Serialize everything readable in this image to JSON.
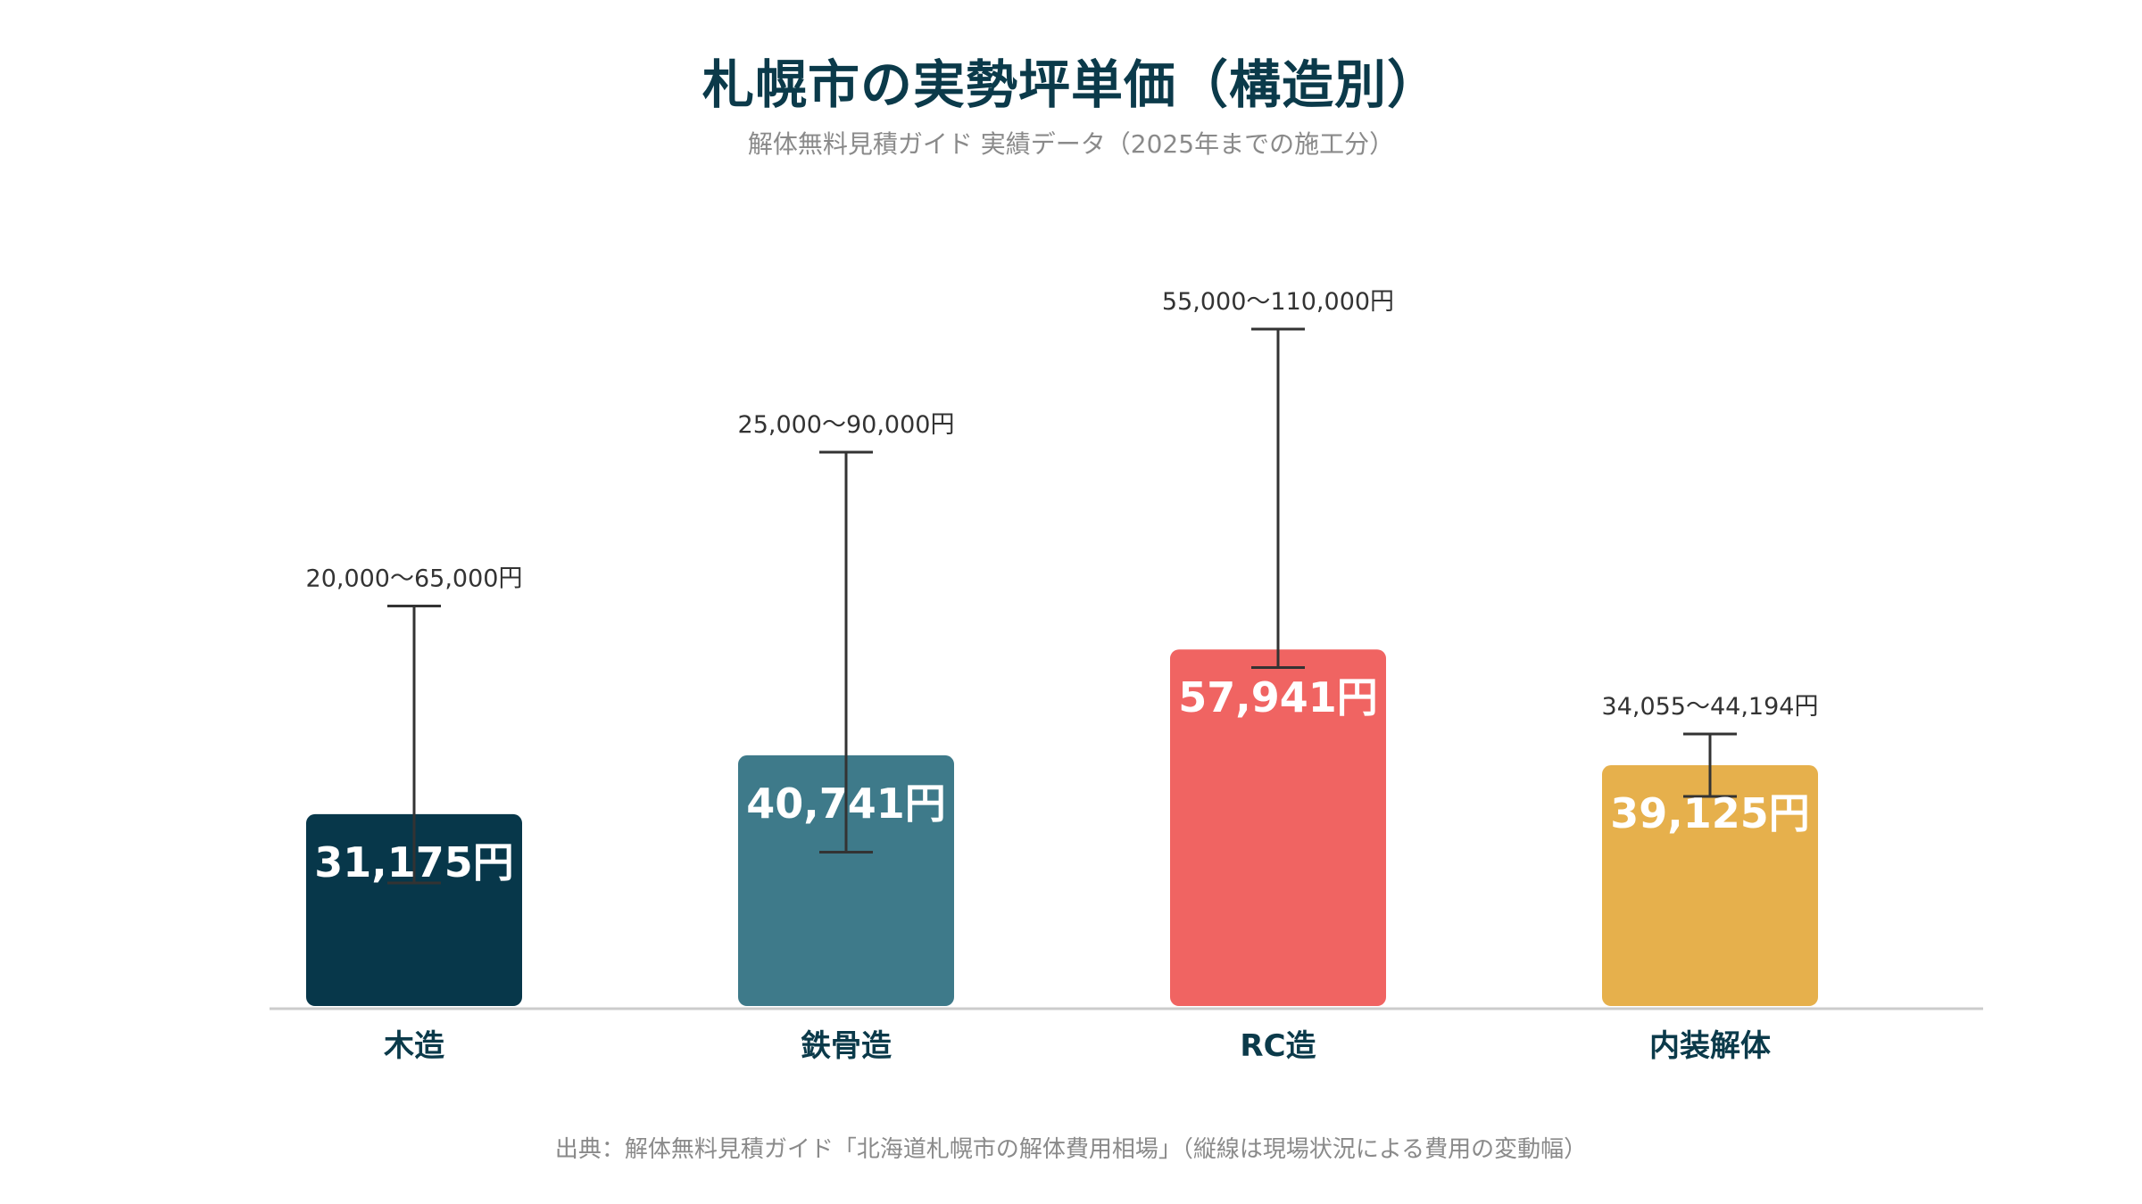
{
  "chart_data": {
    "type": "bar",
    "title": "札幌市の実勢坪単価（構造別）",
    "subtitle": "解体無料見積ガイド 実績データ（2025年までの施工分）",
    "source": "出典：解体無料見積ガイド「北海道札幌市の解体費用相場」（縦線は現場状況による費用の変動幅）",
    "categories": [
      "木造",
      "鉄骨造",
      "RC造",
      "内装解体"
    ],
    "values": [
      31175,
      40741,
      57941,
      39125
    ],
    "value_labels": [
      "31,175円",
      "40,741円",
      "57,941円",
      "39,125円"
    ],
    "ranges": [
      [
        20000,
        65000
      ],
      [
        25000,
        90000
      ],
      [
        55000,
        110000
      ],
      [
        34055,
        44194
      ]
    ],
    "range_labels": [
      "20,000〜65,000円",
      "25,000〜90,000円",
      "55,000〜110,000円",
      "34,055〜44,194円"
    ],
    "colors": [
      "#07374a",
      "#3e7a8a",
      "#f06462",
      "#e6b04c"
    ],
    "ylim": [
      0,
      120000
    ],
    "grid": false,
    "legend": "none"
  }
}
